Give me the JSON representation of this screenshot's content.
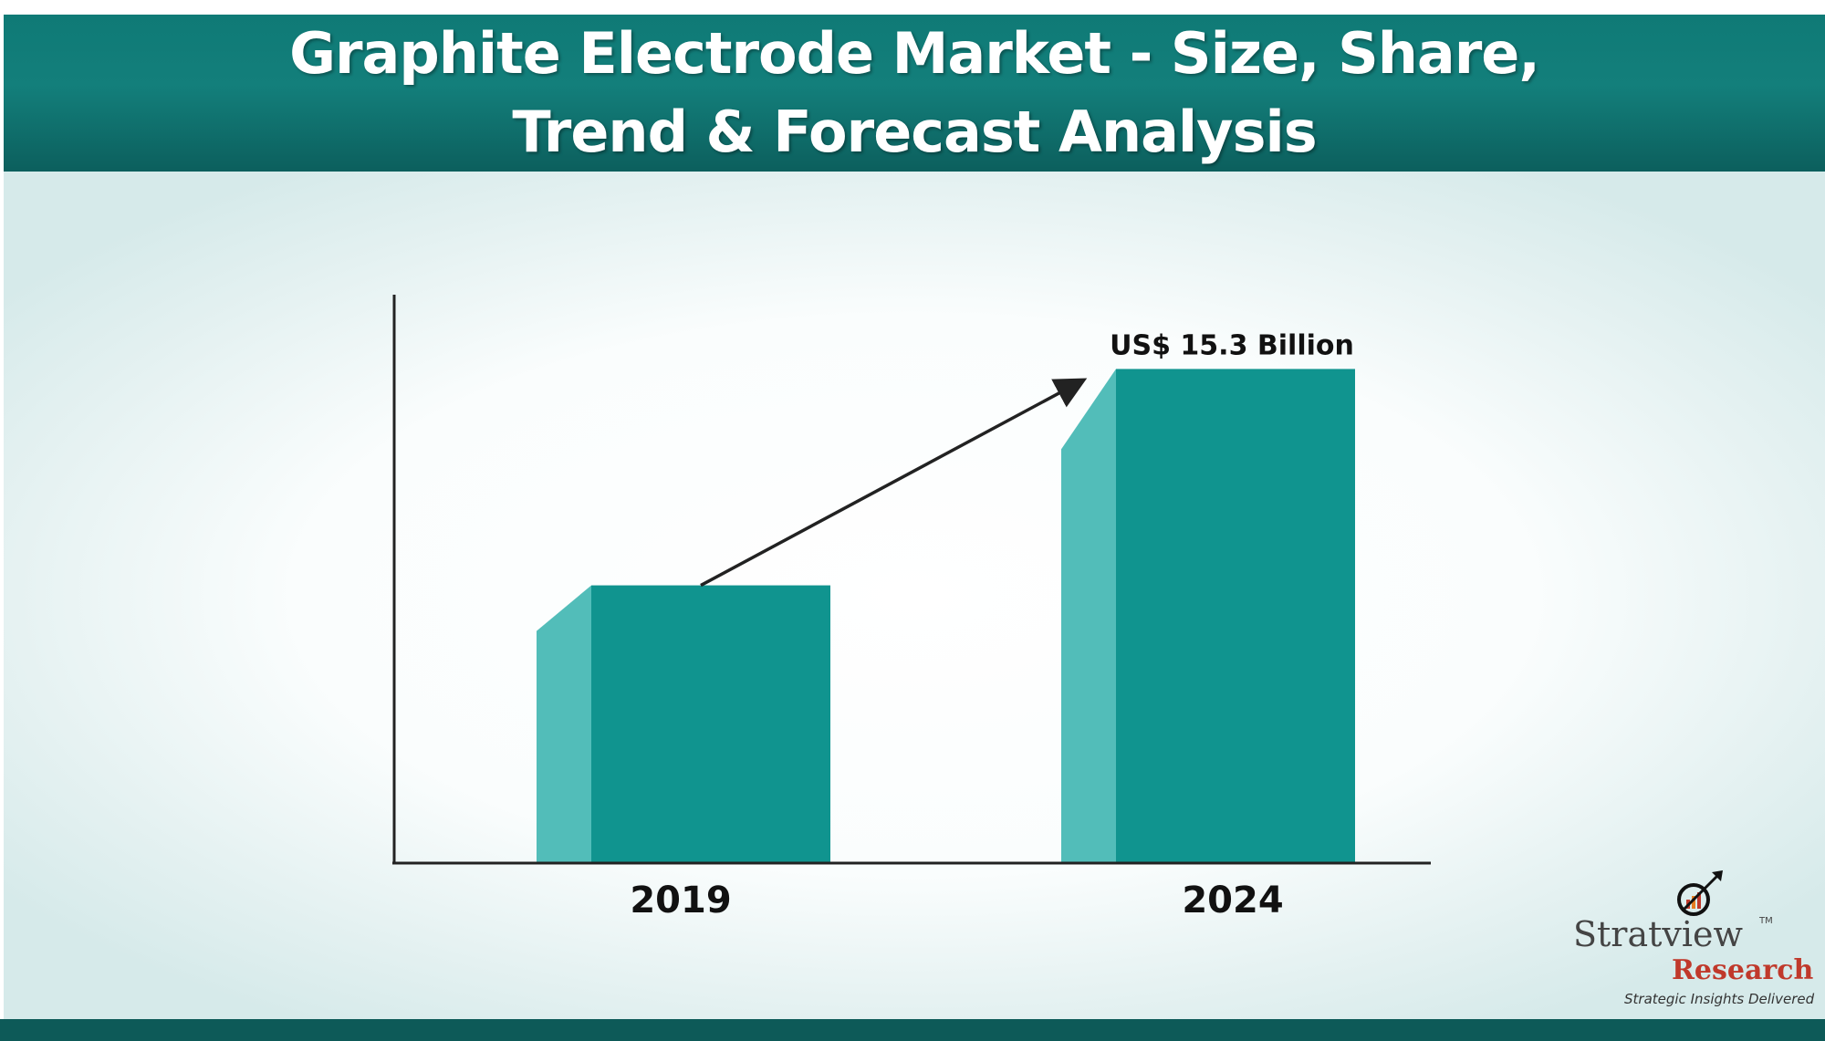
{
  "header": {
    "title": "Graphite Electrode Market  - Size, Share,\nTrend & Forecast Analysis"
  },
  "chart_data": {
    "type": "bar",
    "title": "",
    "xlabel": "",
    "ylabel": "",
    "categories": [
      "2019",
      "2024"
    ],
    "values": [
      8.6,
      15.3
    ],
    "value_labels": [
      null,
      "US$ 15.3 Billion"
    ],
    "unit": "US$ Billion",
    "ylim": [
      0,
      17.6
    ],
    "grid": false,
    "legend": "none",
    "annotations": [
      "trend arrow from 2019 bar to 2024 bar"
    ]
  },
  "colors": {
    "bar_front": "#10948f",
    "bar_side": "#52bdb9",
    "header": "#137f7b",
    "arrow": "#222222"
  },
  "logo": {
    "name": "Stratview",
    "tm": "TM",
    "subname": "Research",
    "tagline": "Strategic Insights Delivered"
  }
}
